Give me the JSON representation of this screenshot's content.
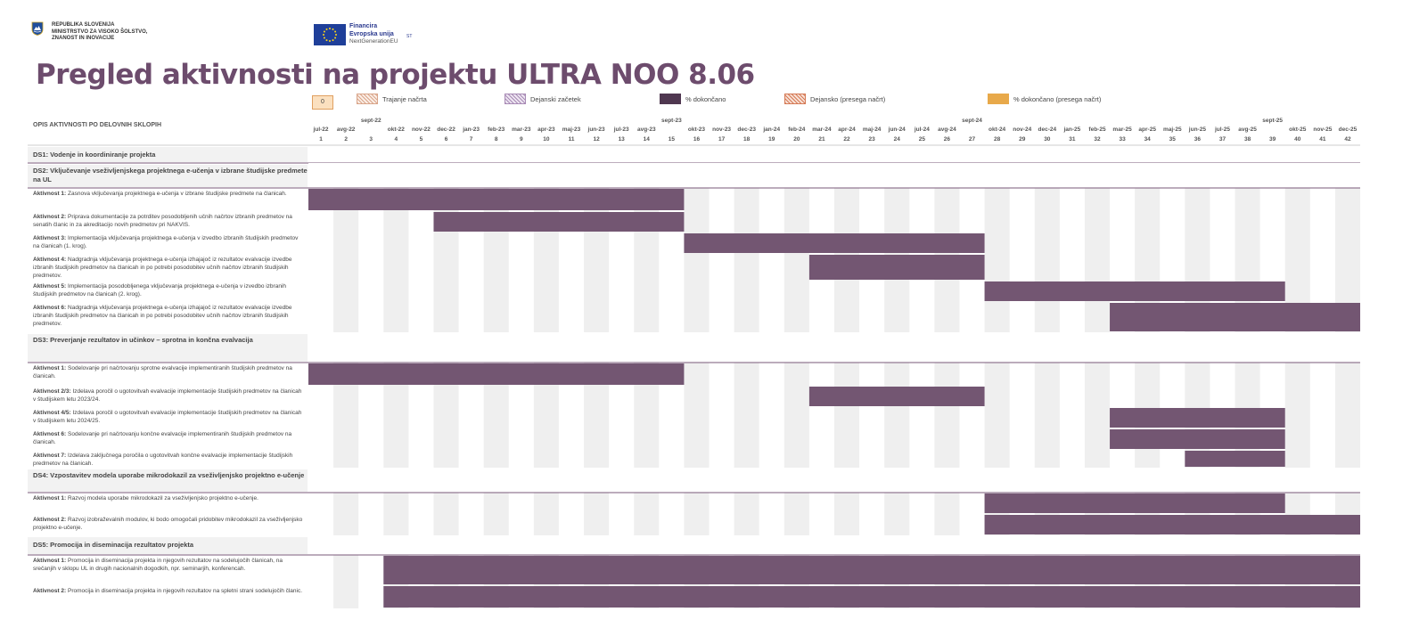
{
  "header": {
    "ministry_lines": [
      "REPUBLIKA SLOVENIJA",
      "MINISTRSTVO ZA VISOKO ŠOLSTVO,",
      "ZNANOST IN INOVACIJE"
    ],
    "eu_lines": [
      "Financira",
      "Evropska unija",
      "NextGenerationEU"
    ],
    "eu_sub": "ST"
  },
  "title": "Pregled aktivnosti na projektu ULTRA NOO 8.06",
  "legend": {
    "box_value": "0",
    "items": [
      {
        "label": "Trajanje načrta",
        "color": "#d9a58a",
        "pattern": "hatch"
      },
      {
        "label": "Dejanski začetek",
        "color": "#a88bb5",
        "pattern": "hatch"
      },
      {
        "label": "% dokončano",
        "color": "#4f3750",
        "pattern": "solid"
      },
      {
        "label": "Dejansko (presega načrt)",
        "color": "#d57a56",
        "pattern": "hatch"
      },
      {
        "label": "% dokončano (presega načrt)",
        "color": "#e8a94a",
        "pattern": "solid"
      }
    ]
  },
  "activities_header": "OPIS AKTIVNOSTI PO DELOVNIH SKLOPIH",
  "colors": {
    "bar": "#735672",
    "stripe": "#efefef",
    "title": "#6d4c6d",
    "line": "#7a5a7a"
  },
  "chart_data": {
    "type": "gantt",
    "months": [
      "jul-22",
      "avg-22",
      "sept-22",
      "okt-22",
      "nov-22",
      "dec-22",
      "jan-23",
      "feb-23",
      "mar-23",
      "apr-23",
      "maj-23",
      "jun-23",
      "jul-23",
      "avg-23",
      "sept-23",
      "okt-23",
      "nov-23",
      "dec-23",
      "jan-24",
      "feb-24",
      "mar-24",
      "apr-24",
      "maj-24",
      "jun-24",
      "jul-24",
      "avg-24",
      "sept-24",
      "okt-24",
      "nov-24",
      "dec-24",
      "jan-25",
      "feb-25",
      "mar-25",
      "apr-25",
      "maj-25",
      "jun-25",
      "jul-25",
      "avg-25",
      "sept-25",
      "okt-25",
      "nov-25",
      "dec-25"
    ],
    "periods": [
      1,
      2,
      3,
      4,
      5,
      6,
      7,
      8,
      9,
      10,
      11,
      12,
      13,
      14,
      15,
      16,
      17,
      18,
      19,
      20,
      21,
      22,
      23,
      24,
      25,
      26,
      27,
      28,
      29,
      30,
      31,
      32,
      33,
      34,
      35,
      36,
      37,
      38,
      39,
      40,
      41,
      42
    ],
    "rows": [
      {
        "kind": "section",
        "label": "DS1: Vodenje in koordiniranje projekta"
      },
      {
        "kind": "section",
        "label": "DS2: Vključevanje vseživljenjskega projektnega e-učenja v izbrane študijske predmete na UL"
      },
      {
        "kind": "task",
        "name": "Aktivnost 1:",
        "text": "Zasnova vključevanja projektnega e-učenja v izbrane študijske predmete na članicah.",
        "start": 1,
        "end": 15
      },
      {
        "kind": "task",
        "name": "Aktivnost 2:",
        "text": "Priprava dokumentacije za potrditev posodobljenih učnih načrtov izbranih predmetov na senatih članic in za akreditacijo novih predmetov pri NAKVIS.",
        "start": 6,
        "end": 15
      },
      {
        "kind": "task",
        "name": "Aktivnost 3:",
        "text": "Implementacija vključevanja projektnega e-učenja v izvedbo izbranih študijskih predmetov na članicah (1. krog).",
        "start": 16,
        "end": 27
      },
      {
        "kind": "task",
        "name": "Aktivnost 4:",
        "text": "Nadgradnja vključevanja projektnega e-učenja izhajajoč iz rezultatov evalvacije izvedbe izbranih študijskih predmetov na članicah in po potrebi posodobitev učnih načrtov izbranih študijskih predmetov.",
        "start": 21,
        "end": 27
      },
      {
        "kind": "task",
        "name": "Aktivnost 5:",
        "text": "Implementacija posodobljenega vključevanja projektnega e-učenja v izvedbo izbranih študijskih predmetov na članicah (2. krog).",
        "start": 28,
        "end": 39
      },
      {
        "kind": "task",
        "name": "Aktivnost 6:",
        "text": "Nadgradnja vključevanja projektnega e-učenja izhajajoč iz rezultatov evalvacije izvedbe izbranih študijskih predmetov na članicah in po potrebi posodobitev učnih načrtov izbranih študijskih predmetov.",
        "start": 33,
        "end": 42
      },
      {
        "kind": "section",
        "label": "DS3: Preverjanje rezultatov in učinkov – sprotna in končna evalvacija"
      },
      {
        "kind": "task",
        "name": "Aktivnost 1:",
        "text": "Sodelovanje pri načrtovanju sprotne evalvacije implementiranih študijskih predmetov na članicah.",
        "start": 1,
        "end": 15
      },
      {
        "kind": "task",
        "name": "Aktivnost 2/3:",
        "text": "Izdelava poročil o ugotovitvah evalvacije implementacije študijskih predmetov na članicah v študijskem letu 2023/24.",
        "start": 21,
        "end": 27
      },
      {
        "kind": "task",
        "name": "Aktivnost 4/5:",
        "text": "Izdelava poročil o ugotovitvah evalvacije implementacije študijskih predmetov na članicah v študijskem letu 2024/25.",
        "start": 33,
        "end": 39
      },
      {
        "kind": "task",
        "name": "Aktivnost 6:",
        "text": "Sodelovanje pri načrtovanju končne evalvacije implementiranih študijskih predmetov na članicah.",
        "start": 33,
        "end": 39
      },
      {
        "kind": "task",
        "name": "Aktivnost 7:",
        "text": "Izdelava zaključnega poročila o ugotovitvah končne evalvacije implementacije študijskih predmetov na članicah.",
        "start": 36,
        "end": 39
      },
      {
        "kind": "section",
        "label": "DS4: Vzpostavitev modela uporabe mikrodokazil za vseživljenjsko projektno e-učenje"
      },
      {
        "kind": "task",
        "name": "Aktivnost 1:",
        "text": "Razvoj modela uporabe mikrodokazil za vseživljenjsko projektno e-učenje.",
        "start": 28,
        "end": 39
      },
      {
        "kind": "task",
        "name": "Aktivnost 2:",
        "text": "Razvoj izobraževalnih modulov, ki bodo omogočali pridobitev mikrodokazil za vseživljenjsko projektno e-učenje.",
        "start": 28,
        "end": 42
      },
      {
        "kind": "section",
        "label": "DS5: Promocija in diseminacija rezultatov projekta"
      },
      {
        "kind": "task",
        "name": "Aktivnost 1:",
        "text": "Promocija in diseminacija projekta in njegovih rezultatov na sodelujočih članicah, na srečanjih v sklopu UL in drugih nacionalnih dogodkih, npr. seminarjih, konferencah.",
        "start": 4,
        "end": 42
      },
      {
        "kind": "task",
        "name": "Aktivnost 2:",
        "text": "Promocija in diseminacija projekta in njegovih rezultatov na spletni strani sodelujočih članic.",
        "start": 4,
        "end": 42
      }
    ]
  }
}
